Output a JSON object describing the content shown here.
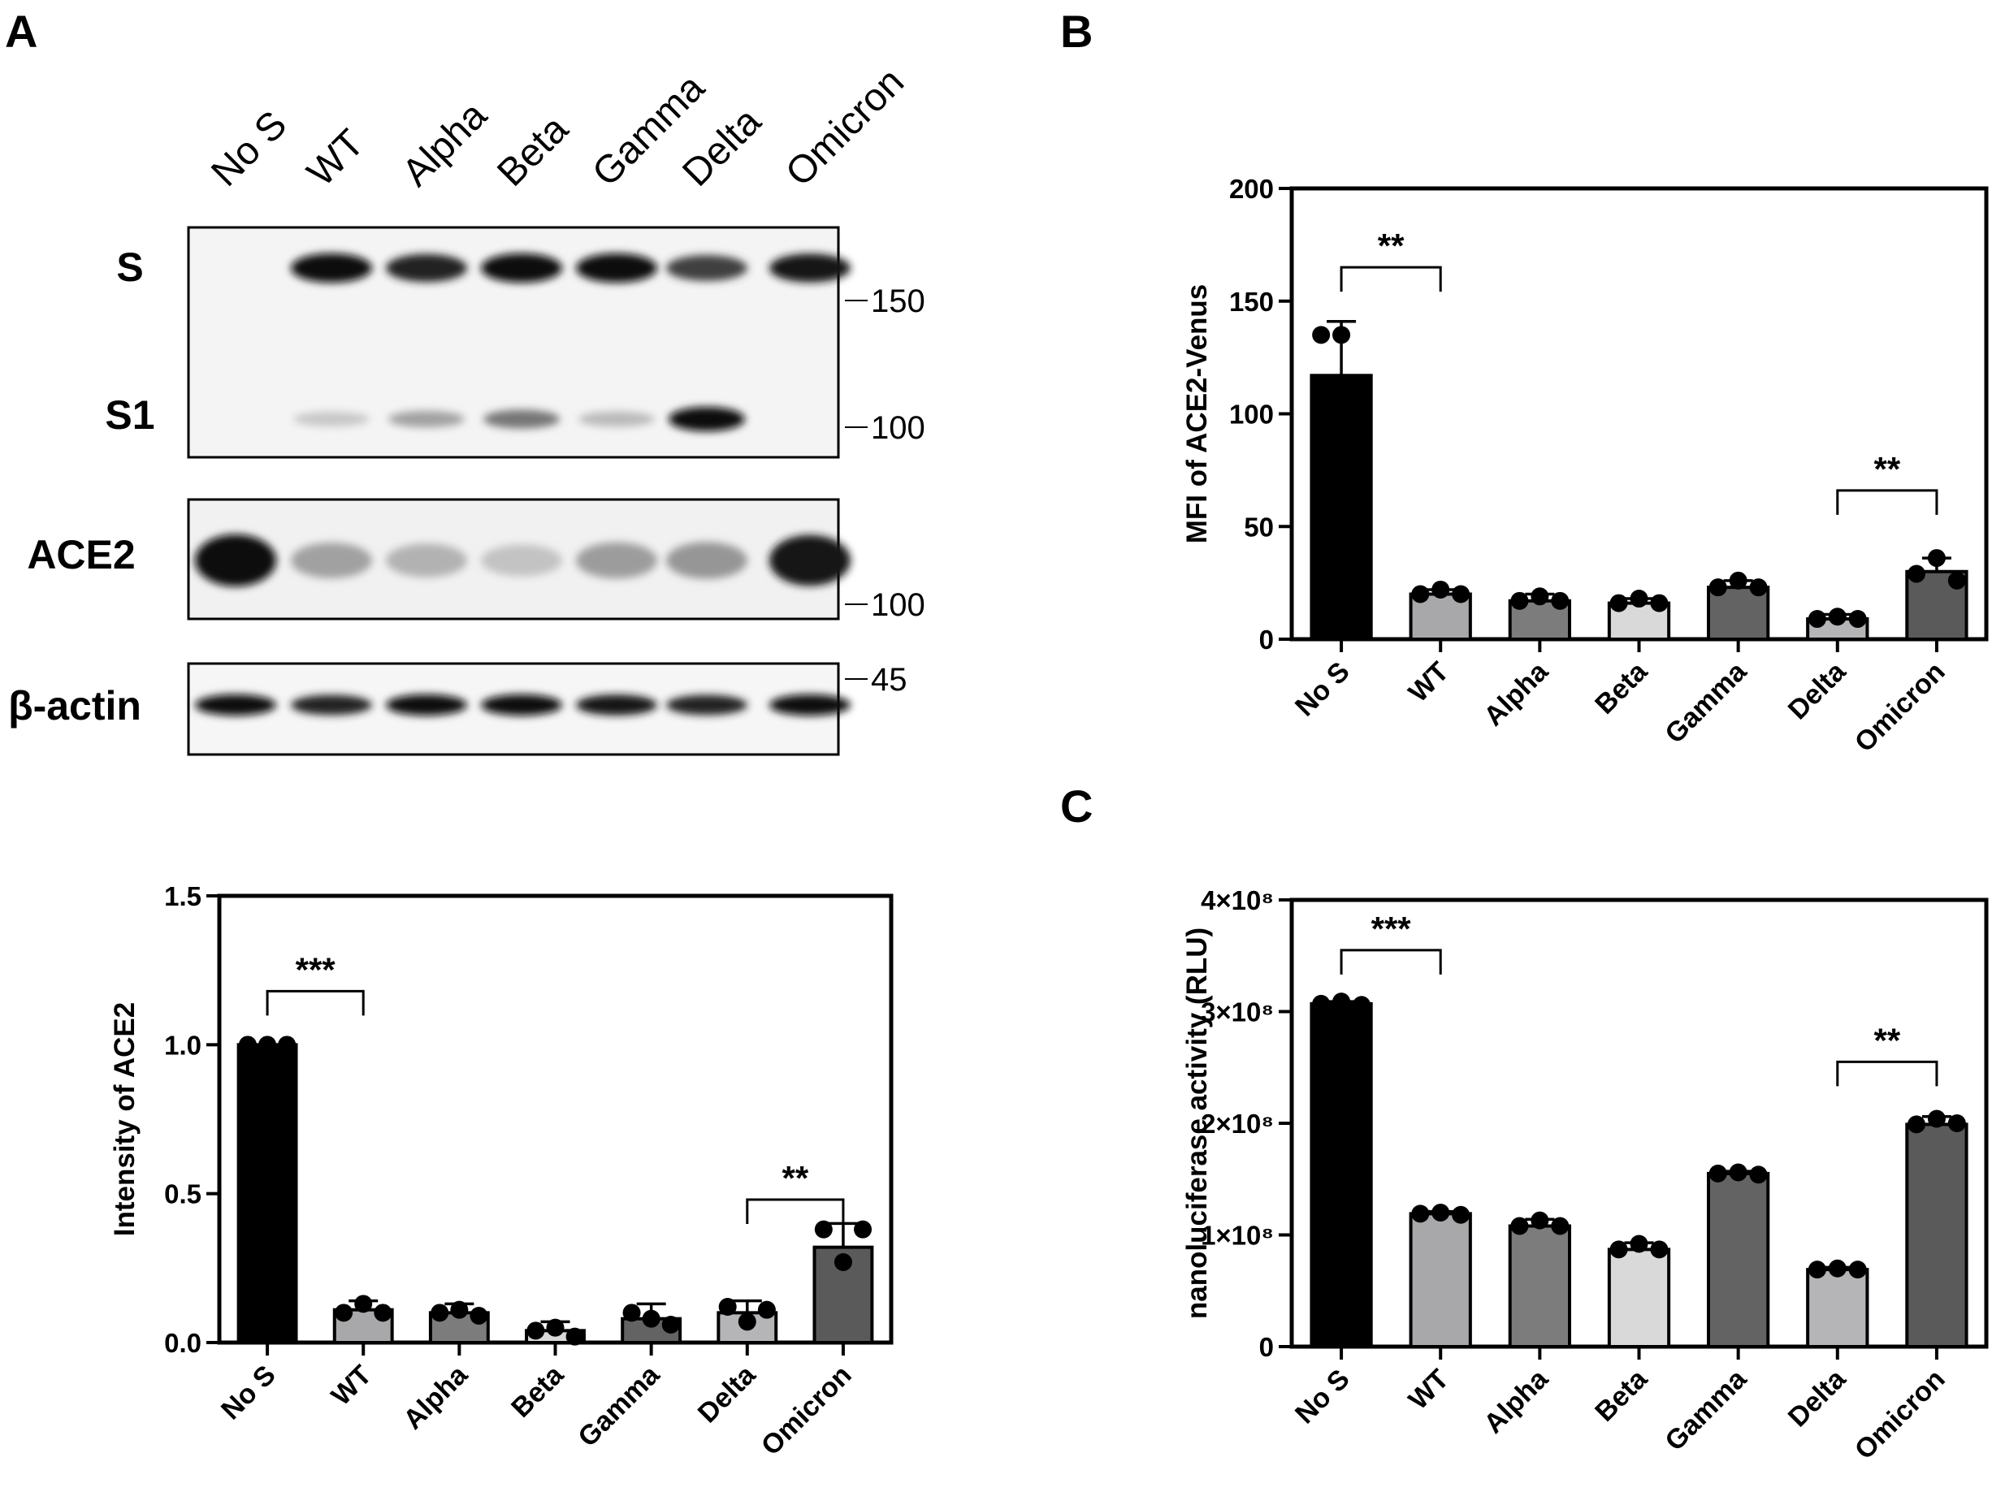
{
  "panels": {
    "a": "A",
    "b": "B",
    "c": "C"
  },
  "blot": {
    "lanes": [
      "No S",
      "WT",
      "Alpha",
      "Beta",
      "Gamma",
      "Delta",
      "Omicron"
    ],
    "row_labels": {
      "s": "S",
      "s1": "S1",
      "ace2": "ACE2",
      "actin": "β-actin"
    },
    "markers": {
      "m150": "150",
      "m100_top": "100",
      "m100_ace2": "100",
      "m45": "45"
    },
    "s_band": [
      0,
      1,
      0.9,
      1,
      1,
      0.75,
      0.95
    ],
    "s1_band": [
      0,
      0.12,
      0.3,
      0.5,
      0.18,
      1,
      0
    ],
    "ace2_band": [
      1,
      0.3,
      0.22,
      0.14,
      0.32,
      0.35,
      0.95
    ],
    "actin_band": [
      1,
      0.9,
      1,
      1,
      0.95,
      0.9,
      1
    ]
  },
  "colors": {
    "No S": "#000000",
    "WT": "#a8a8ab",
    "Alpha": "#7c7c7c",
    "Beta": "#d9d9d9",
    "Gamma": "#636363",
    "Delta": "#b5b5b8",
    "Omicron": "#5a5a5a"
  },
  "chart_data": [
    {
      "id": "ace2-intensity",
      "type": "bar",
      "title": "",
      "xlabel": "",
      "ylabel": "Intensity of ACE2",
      "categories": [
        "No S",
        "WT",
        "Alpha",
        "Beta",
        "Gamma",
        "Delta",
        "Omicron"
      ],
      "values": [
        1.0,
        0.11,
        0.1,
        0.04,
        0.08,
        0.1,
        0.32
      ],
      "errors": [
        0.0,
        0.03,
        0.03,
        0.03,
        0.05,
        0.04,
        0.08
      ],
      "points": [
        [
          1.0,
          1.0,
          1.0
        ],
        [
          0.1,
          0.13,
          0.1
        ],
        [
          0.1,
          0.11,
          0.09
        ],
        [
          0.04,
          0.05,
          0.02
        ],
        [
          0.1,
          0.08,
          0.06
        ],
        [
          0.12,
          0.07,
          0.11
        ],
        [
          0.38,
          0.27,
          0.38
        ]
      ],
      "ylim": [
        0,
        1.5
      ],
      "yticks": [
        "0.0",
        "0.5",
        "1.0",
        "1.5"
      ],
      "significance": [
        {
          "from": 0,
          "to": 1,
          "label": "***",
          "y": 1.18
        },
        {
          "from": 5,
          "to": 6,
          "label": "**",
          "y": 0.48
        }
      ]
    },
    {
      "id": "mfi-ace2-venus",
      "type": "bar",
      "title": "",
      "xlabel": "",
      "ylabel": "MFI of ACE2-Venus",
      "categories": [
        "No S",
        "WT",
        "Alpha",
        "Beta",
        "Gamma",
        "Delta",
        "Omicron"
      ],
      "values": [
        117,
        20,
        17,
        16,
        23,
        9,
        30
      ],
      "errors": [
        24,
        2,
        3,
        2,
        3,
        2,
        6
      ],
      "points": [
        [
          135,
          135,
          0
        ],
        [
          20,
          22,
          20
        ],
        [
          17,
          19,
          17
        ],
        [
          16,
          18,
          16
        ],
        [
          23,
          26,
          23
        ],
        [
          9,
          10,
          9
        ],
        [
          29,
          36,
          26
        ]
      ],
      "ylim": [
        0,
        200
      ],
      "yticks": [
        "0",
        "50",
        "100",
        "150",
        "200"
      ],
      "significance": [
        {
          "from": 0,
          "to": 1,
          "label": "**",
          "y": 165
        },
        {
          "from": 5,
          "to": 6,
          "label": "**",
          "y": 66
        }
      ]
    },
    {
      "id": "nanoluciferase",
      "type": "bar",
      "title": "",
      "xlabel": "",
      "ylabel": "nanoluciferase activity (RLU)",
      "categories": [
        "No S",
        "WT",
        "Alpha",
        "Beta",
        "Gamma",
        "Delta",
        "Omicron"
      ],
      "values": [
        307000000,
        119000000,
        108000000,
        87000000,
        155000000,
        69000000,
        199000000
      ],
      "errors": [
        2000000,
        2000000,
        6000000,
        6000000,
        2000000,
        2000000,
        7000000
      ],
      "points": [
        [
          307000000,
          309000000,
          306000000
        ],
        [
          119000000,
          120000000,
          118000000
        ],
        [
          108000000,
          113000000,
          108000000
        ],
        [
          87000000,
          92000000,
          87000000
        ],
        [
          155000000,
          156000000,
          154000000
        ],
        [
          69000000,
          70000000,
          69000000
        ],
        [
          199000000,
          204000000,
          200000000
        ]
      ],
      "ylim": [
        0,
        400000000
      ],
      "yticks": [
        "0",
        "1×10⁸",
        "2×10⁸",
        "3×10⁸",
        "4×10⁸"
      ],
      "significance": [
        {
          "from": 0,
          "to": 1,
          "label": "***",
          "y": 355000000
        },
        {
          "from": 5,
          "to": 6,
          "label": "**",
          "y": 255000000
        }
      ]
    }
  ]
}
